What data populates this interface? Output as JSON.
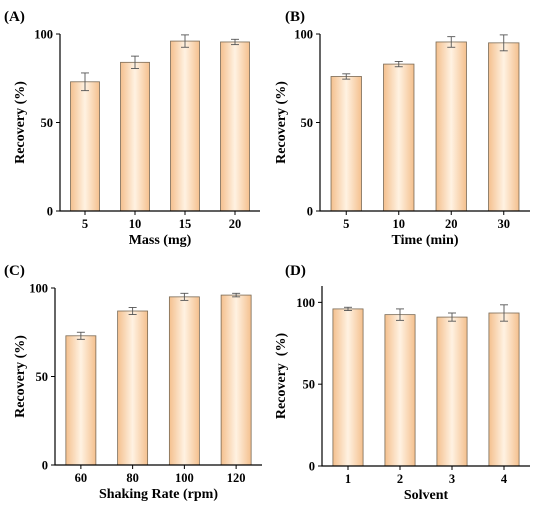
{
  "colors": {
    "bar_fill_edge": "#f4c08e",
    "bar_fill_center": "#fff2e2",
    "axis": "#000000",
    "error_bar": "#555555"
  },
  "chart_data": [
    {
      "type": "bar",
      "panel_label": "(A)",
      "categories": [
        "5",
        "10",
        "15",
        "20"
      ],
      "values": [
        73,
        84,
        96,
        95.5
      ],
      "errors": [
        5,
        3.5,
        3.5,
        1.5
      ],
      "xlabel": "Mass (mg)",
      "ylabel": "Recovery (%)",
      "ylim": [
        0,
        100
      ],
      "yticks": [
        0,
        50,
        100
      ]
    },
    {
      "type": "bar",
      "panel_label": "(B)",
      "categories": [
        "5",
        "10",
        "20",
        "30"
      ],
      "values": [
        76,
        83,
        95.5,
        95
      ],
      "errors": [
        1.5,
        1.5,
        3,
        4.5
      ],
      "xlabel": "Time (min)",
      "ylabel": "Recovery (%)",
      "ylim": [
        0,
        100
      ],
      "yticks": [
        0,
        50,
        100
      ]
    },
    {
      "type": "bar",
      "panel_label": "(C)",
      "categories": [
        "60",
        "80",
        "100",
        "120"
      ],
      "values": [
        73,
        87,
        95,
        96
      ],
      "errors": [
        2,
        2,
        2,
        1
      ],
      "xlabel": "Shaking Rate (rpm)",
      "ylabel": "Recovery (%)",
      "ylim": [
        0,
        100
      ],
      "yticks": [
        0,
        50,
        100
      ]
    },
    {
      "type": "bar",
      "panel_label": "(D)",
      "categories": [
        "1",
        "2",
        "3",
        "4"
      ],
      "values": [
        96,
        92.5,
        91,
        93.5
      ],
      "errors": [
        1,
        3.5,
        2.5,
        5
      ],
      "xlabel": "Solvent",
      "ylabel": "Recovery  (%)",
      "ylim": [
        0,
        110
      ],
      "yticks": [
        0,
        50,
        100
      ]
    }
  ]
}
